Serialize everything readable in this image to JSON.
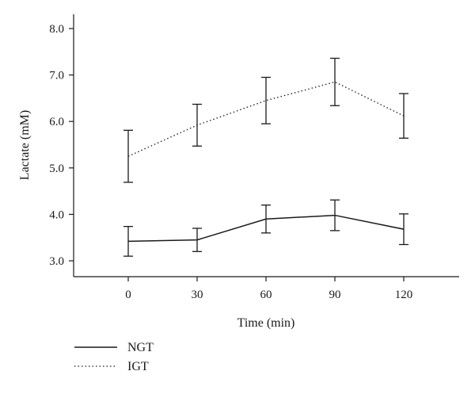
{
  "chart_data": {
    "type": "line",
    "xlabel": "Time (min)",
    "ylabel": "Lactate (mM)",
    "x": [
      0,
      30,
      60,
      90,
      120
    ],
    "xticks": [
      "0",
      "30",
      "60",
      "90",
      "120"
    ],
    "yticks": [
      "3.0",
      "4.0",
      "5.0",
      "6.0",
      "7.0",
      "8.0"
    ],
    "ylim": [
      2.7,
      8.3
    ],
    "grid": false,
    "legend_position": "bottom-left",
    "series": [
      {
        "name": "NGT",
        "style": "solid",
        "color": "#1a1a1a",
        "values": [
          3.42,
          3.45,
          3.9,
          3.98,
          3.68
        ],
        "error": [
          0.32,
          0.25,
          0.3,
          0.33,
          0.33
        ]
      },
      {
        "name": "IGT",
        "style": "dotted",
        "color": "#1a1a1a",
        "values": [
          5.25,
          5.92,
          6.45,
          6.85,
          6.12
        ],
        "error": [
          0.56,
          0.45,
          0.5,
          0.51,
          0.48
        ]
      }
    ]
  }
}
